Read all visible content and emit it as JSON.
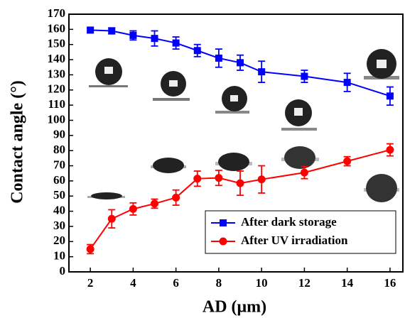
{
  "chart_data": {
    "type": "line",
    "x_label": "AD (μm)",
    "y_label": "Contact angle (°)",
    "x": [
      2,
      3,
      4,
      5,
      6,
      7,
      8,
      9,
      10,
      12,
      14,
      16
    ],
    "series": [
      {
        "name": "After dark storage",
        "color": "#0000ff",
        "marker": "square",
        "values": [
          159.5,
          159,
          156,
          154,
          151,
          146,
          141,
          138,
          132,
          129,
          125,
          116
        ],
        "errors": [
          1.5,
          2,
          3,
          5,
          4,
          4,
          6,
          5,
          7,
          4,
          6,
          6
        ]
      },
      {
        "name": "After UV irradiation",
        "color": "#ff0000",
        "marker": "circle",
        "values": [
          15,
          35,
          41.5,
          45,
          49,
          61.5,
          62,
          58.5,
          61,
          65.5,
          73,
          80.5
        ],
        "errors": [
          3,
          6,
          4,
          3,
          5,
          5,
          5,
          8,
          9,
          4,
          3,
          4
        ]
      }
    ],
    "xlim": [
      1,
      16.6
    ],
    "xticks": [
      2,
      4,
      6,
      8,
      10,
      12,
      14,
      16
    ],
    "ylim": [
      0,
      170
    ],
    "yticks": [
      0,
      10,
      20,
      30,
      40,
      50,
      60,
      70,
      80,
      90,
      100,
      110,
      120,
      130,
      140,
      150,
      160,
      170
    ],
    "legend": "lower right"
  }
}
